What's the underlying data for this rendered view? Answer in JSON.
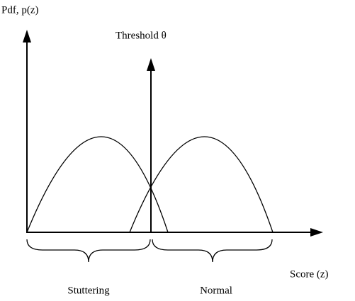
{
  "axes": {
    "y_label": "Pdf, p(z)",
    "threshold_label": "Threshold θ",
    "x_label": "Score (z)"
  },
  "regions": [
    "Stuttering",
    "Normal"
  ]
}
